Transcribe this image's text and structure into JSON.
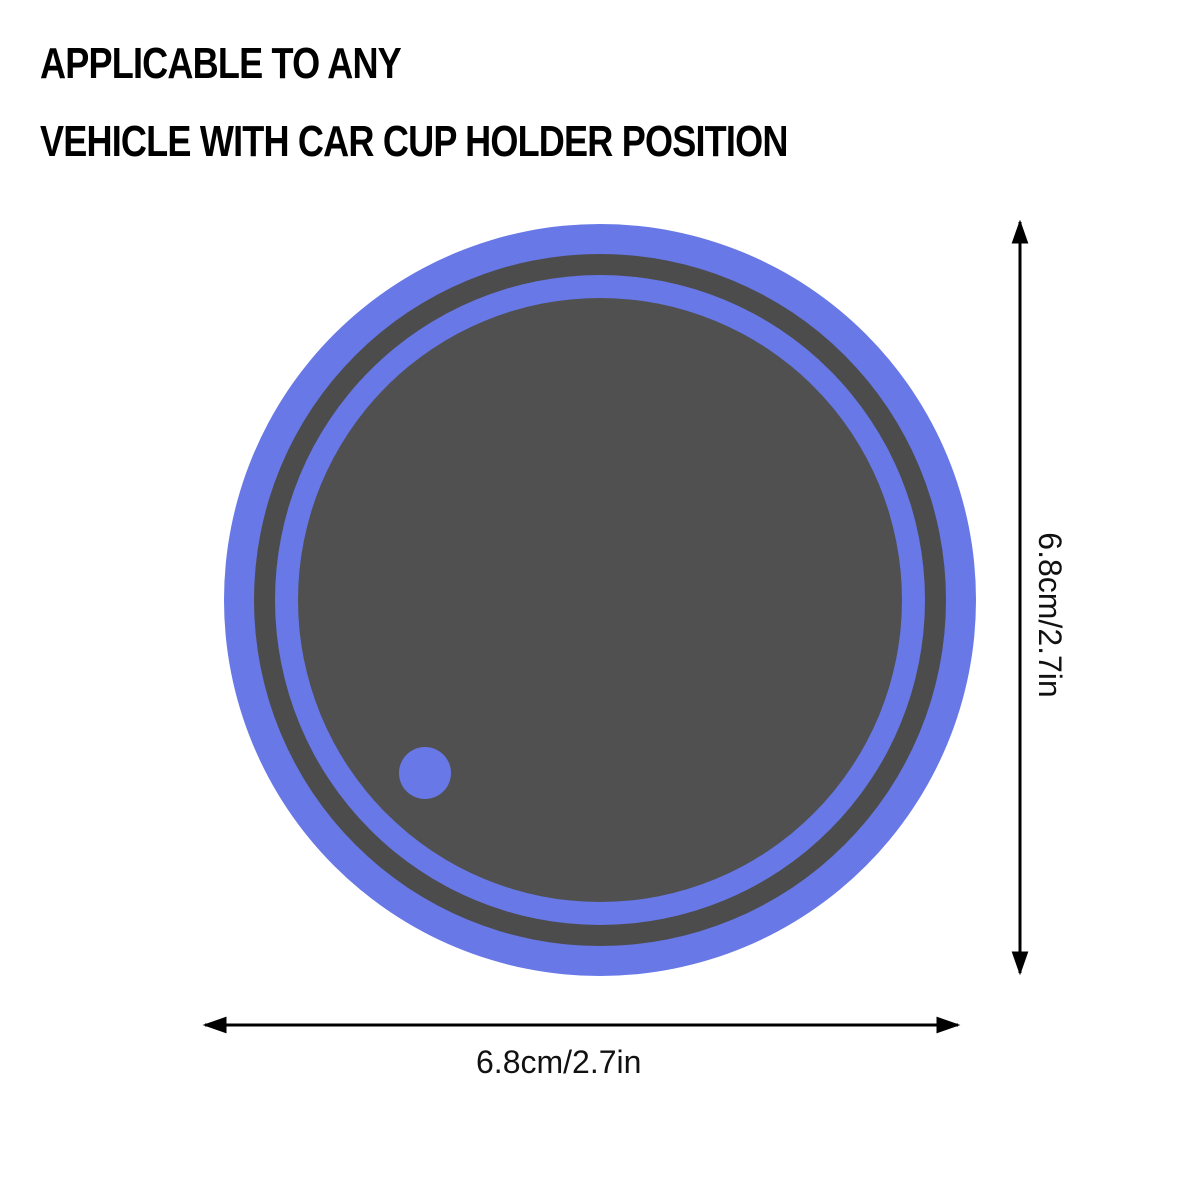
{
  "headline": {
    "line1": "APPLICABLE TO ANY",
    "line2": "VEHICLE WITH CAR CUP HOLDER POSITION"
  },
  "dimensions": {
    "width_label": "6.8cm/2.7in",
    "height_label": "6.8cm/2.7in"
  },
  "colors": {
    "ring": "#6878e6",
    "coaster_surface": "#505050",
    "dimension_line": "#000000",
    "background": "#ffffff"
  }
}
